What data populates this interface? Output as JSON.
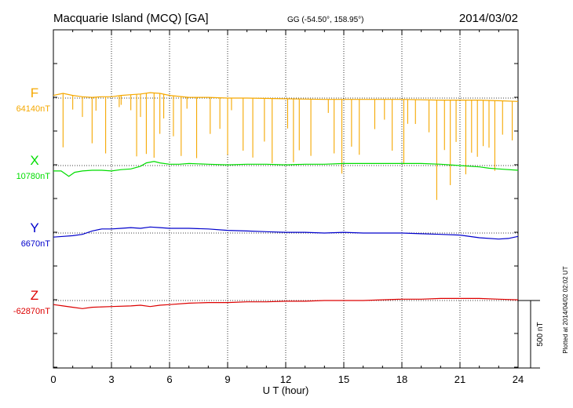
{
  "chart_data": {
    "type": "line",
    "title": "Macquarie Island (MCQ)  [GA]",
    "coordinates": "GG (-54.50°, 158.95°)",
    "date": "2014/03/02",
    "xlabel": "U T (hour)",
    "xlim": [
      0,
      24
    ],
    "x_ticks": [
      "0",
      "3",
      "6",
      "9",
      "12",
      "15",
      "18",
      "21",
      "24"
    ],
    "grid": "vertical dotted at every 3 hours; dotted baseline per series",
    "scale_bar_label": "500 nT",
    "scale_bar_nT": 500,
    "plotted_note": "Plotted at 2014/04/02 02:02 UT",
    "series": [
      {
        "name": "F",
        "baseline_label": "64140nT",
        "baseline_nT": 64140,
        "color": "#f5a800",
        "points": [
          [
            0,
            64160
          ],
          [
            0.5,
            64175
          ],
          [
            1,
            64160
          ],
          [
            1.5,
            64150
          ],
          [
            2,
            64145
          ],
          [
            2.5,
            64150
          ],
          [
            3,
            64150
          ],
          [
            3.5,
            64160
          ],
          [
            4,
            64165
          ],
          [
            4.5,
            64170
          ],
          [
            5,
            64180
          ],
          [
            5.5,
            64175
          ],
          [
            6,
            64160
          ],
          [
            7,
            64145
          ],
          [
            8,
            64145
          ],
          [
            9,
            64140
          ],
          [
            10,
            64140
          ],
          [
            12,
            64135
          ],
          [
            14,
            64130
          ],
          [
            16,
            64130
          ],
          [
            18,
            64130
          ],
          [
            20,
            64125
          ],
          [
            22,
            64125
          ],
          [
            23,
            64120
          ],
          [
            24,
            64115
          ]
        ],
        "spikes": [
          [
            0.5,
            -400
          ],
          [
            1,
            -105
          ],
          [
            1.5,
            -150
          ],
          [
            2,
            -340
          ],
          [
            2.2,
            -100
          ],
          [
            2.7,
            -420
          ],
          [
            3.4,
            -85
          ],
          [
            3.5,
            -70
          ],
          [
            4,
            -115
          ],
          [
            4.3,
            -460
          ],
          [
            4.5,
            -170
          ],
          [
            4.8,
            -450
          ],
          [
            5.2,
            -480
          ],
          [
            5.5,
            -300
          ],
          [
            5.7,
            -180
          ],
          [
            6.2,
            -300
          ],
          [
            6.6,
            -440
          ],
          [
            6.9,
            -85
          ],
          [
            7.4,
            -450
          ],
          [
            8.1,
            -270
          ],
          [
            8.6,
            -230
          ],
          [
            9,
            -420
          ],
          [
            9.2,
            -90
          ],
          [
            9.8,
            -390
          ],
          [
            10.3,
            -440
          ],
          [
            10.9,
            -320
          ],
          [
            11.3,
            -480
          ],
          [
            12.1,
            -220
          ],
          [
            12.4,
            -470
          ],
          [
            12.7,
            -380
          ],
          [
            13.3,
            -420
          ],
          [
            14.2,
            -100
          ],
          [
            14.5,
            -400
          ],
          [
            14.9,
            -550
          ],
          [
            15.4,
            -350
          ],
          [
            15.8,
            -410
          ],
          [
            16.6,
            -220
          ],
          [
            17.1,
            -150
          ],
          [
            17.5,
            -380
          ],
          [
            18.1,
            -480
          ],
          [
            18.3,
            -180
          ],
          [
            18.7,
            -180
          ],
          [
            19.4,
            -240
          ],
          [
            19.8,
            -740
          ],
          [
            20.2,
            -370
          ],
          [
            20.5,
            -630
          ],
          [
            20.8,
            -310
          ],
          [
            21.3,
            -550
          ],
          [
            21.6,
            -390
          ],
          [
            21.9,
            -420
          ],
          [
            22.2,
            -340
          ],
          [
            22.5,
            -350
          ],
          [
            22.8,
            -520
          ],
          [
            23.2,
            -250
          ],
          [
            23.7,
            -290
          ]
        ]
      },
      {
        "name": "X",
        "baseline_label": "10780nT",
        "baseline_nT": 10780,
        "color": "#00dd00",
        "points": [
          [
            0,
            10740
          ],
          [
            0.4,
            10740
          ],
          [
            0.8,
            10700
          ],
          [
            1.1,
            10730
          ],
          [
            1.5,
            10740
          ],
          [
            2,
            10745
          ],
          [
            2.5,
            10745
          ],
          [
            3,
            10740
          ],
          [
            3.5,
            10750
          ],
          [
            4,
            10755
          ],
          [
            4.5,
            10775
          ],
          [
            4.8,
            10800
          ],
          [
            5.2,
            10810
          ],
          [
            5.5,
            10800
          ],
          [
            6,
            10790
          ],
          [
            6.5,
            10790
          ],
          [
            7,
            10795
          ],
          [
            8,
            10790
          ],
          [
            9,
            10785
          ],
          [
            10,
            10790
          ],
          [
            11,
            10790
          ],
          [
            12,
            10785
          ],
          [
            13,
            10790
          ],
          [
            14,
            10790
          ],
          [
            15,
            10795
          ],
          [
            16,
            10795
          ],
          [
            17,
            10795
          ],
          [
            18,
            10795
          ],
          [
            19,
            10795
          ],
          [
            20,
            10790
          ],
          [
            21,
            10780
          ],
          [
            22,
            10770
          ],
          [
            22.5,
            10760
          ],
          [
            23,
            10755
          ],
          [
            24,
            10745
          ]
        ]
      },
      {
        "name": "Y",
        "baseline_label": "6670nT",
        "baseline_nT": 6670,
        "color": "#0000cc",
        "points": [
          [
            0,
            6640
          ],
          [
            0.5,
            6645
          ],
          [
            1,
            6650
          ],
          [
            1.5,
            6660
          ],
          [
            2,
            6685
          ],
          [
            2.5,
            6700
          ],
          [
            3,
            6700
          ],
          [
            3.5,
            6705
          ],
          [
            4,
            6710
          ],
          [
            4.5,
            6705
          ],
          [
            5,
            6715
          ],
          [
            5.5,
            6710
          ],
          [
            6,
            6705
          ],
          [
            7,
            6705
          ],
          [
            8,
            6700
          ],
          [
            9,
            6690
          ],
          [
            10,
            6685
          ],
          [
            11,
            6680
          ],
          [
            12,
            6675
          ],
          [
            13,
            6675
          ],
          [
            14,
            6670
          ],
          [
            15,
            6675
          ],
          [
            16,
            6670
          ],
          [
            17,
            6670
          ],
          [
            18,
            6670
          ],
          [
            19,
            6665
          ],
          [
            20,
            6660
          ],
          [
            21,
            6655
          ],
          [
            22,
            6635
          ],
          [
            23,
            6625
          ],
          [
            23.5,
            6630
          ],
          [
            24,
            6645
          ]
        ]
      },
      {
        "name": "Z",
        "baseline_label": "-62870nT",
        "baseline_nT": -62870,
        "color": "#dd0000",
        "points": [
          [
            0,
            -62900
          ],
          [
            0.5,
            -62910
          ],
          [
            1,
            -62920
          ],
          [
            1.5,
            -62930
          ],
          [
            2,
            -62920
          ],
          [
            3,
            -62915
          ],
          [
            4,
            -62910
          ],
          [
            4.5,
            -62905
          ],
          [
            5,
            -62915
          ],
          [
            5.5,
            -62905
          ],
          [
            6,
            -62900
          ],
          [
            7,
            -62890
          ],
          [
            8,
            -62885
          ],
          [
            9,
            -62885
          ],
          [
            10,
            -62880
          ],
          [
            11,
            -62880
          ],
          [
            12,
            -62875
          ],
          [
            13,
            -62875
          ],
          [
            14,
            -62870
          ],
          [
            15,
            -62870
          ],
          [
            16,
            -62870
          ],
          [
            17,
            -62865
          ],
          [
            18,
            -62860
          ],
          [
            19,
            -62860
          ],
          [
            20,
            -62855
          ],
          [
            21,
            -62855
          ],
          [
            22,
            -62855
          ],
          [
            23,
            -62860
          ],
          [
            24,
            -62865
          ]
        ]
      }
    ]
  }
}
